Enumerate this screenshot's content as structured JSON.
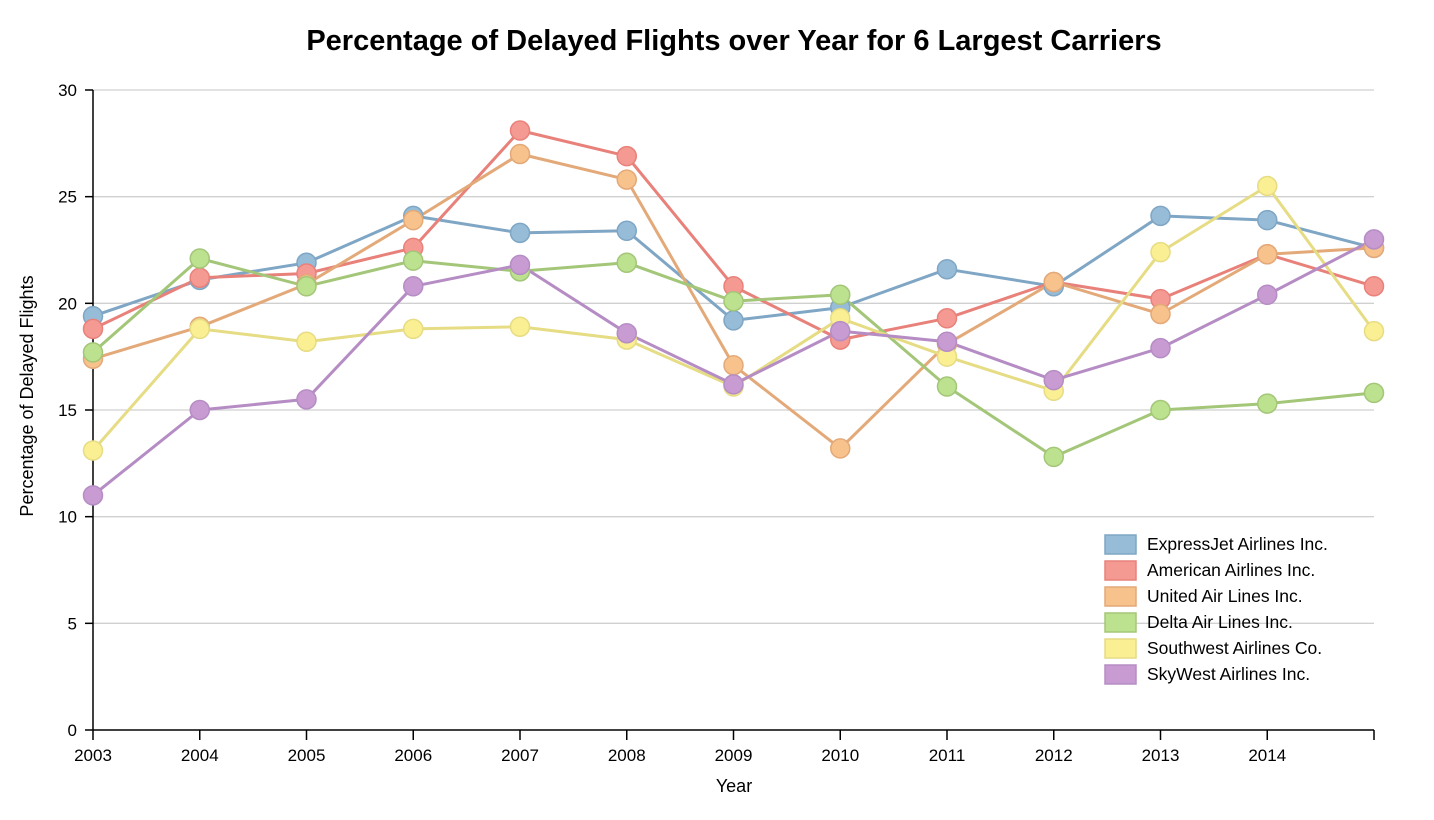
{
  "chart_data": {
    "type": "line",
    "title": "Percentage of Delayed Flights over Year for 6 Largest Carriers",
    "xlabel": "Year",
    "ylabel": "Percentage of Delayed Flights",
    "x": [
      2003,
      2004,
      2005,
      2006,
      2007,
      2008,
      2009,
      2010,
      2011,
      2012,
      2013,
      2014,
      2015
    ],
    "x_tick_labels": [
      "2003",
      "2004",
      "2005",
      "2006",
      "2007",
      "2008",
      "2009",
      "2010",
      "2011",
      "2012",
      "2013",
      "2014",
      ""
    ],
    "y_ticks": [
      0,
      5,
      10,
      15,
      20,
      25,
      30
    ],
    "ylim": [
      0,
      30
    ],
    "xlim": [
      2003,
      2015
    ],
    "grid": true,
    "legend_position": "bottom-right",
    "series": [
      {
        "name": "ExpressJet Airlines Inc.",
        "color": "#7fa6c4",
        "marker": "#96bcd8",
        "values": [
          19.4,
          21.1,
          21.9,
          24.1,
          23.3,
          23.4,
          19.2,
          19.8,
          21.6,
          20.8,
          24.1,
          23.9,
          22.6
        ]
      },
      {
        "name": "American Airlines Inc.",
        "color": "#e8817a",
        "marker": "#f59a93",
        "values": [
          18.8,
          21.2,
          21.4,
          22.6,
          28.1,
          26.9,
          20.8,
          18.3,
          19.3,
          21.0,
          20.2,
          22.3,
          20.8
        ]
      },
      {
        "name": "United Air Lines Inc.",
        "color": "#e3a978",
        "marker": "#f8c28c",
        "values": [
          17.4,
          18.9,
          20.9,
          23.9,
          27.0,
          25.8,
          17.1,
          13.2,
          18.1,
          21.0,
          19.5,
          22.3,
          22.6
        ]
      },
      {
        "name": "Delta Air Lines Inc.",
        "color": "#a3c678",
        "marker": "#bde28f",
        "values": [
          17.7,
          22.1,
          20.8,
          22.0,
          21.5,
          21.9,
          20.1,
          20.4,
          16.1,
          12.8,
          15.0,
          15.3,
          15.8
        ]
      },
      {
        "name": "Southwest Airlines Co.",
        "color": "#e6dc84",
        "marker": "#fbef93",
        "values": [
          13.1,
          18.8,
          18.2,
          18.8,
          18.9,
          18.3,
          16.1,
          19.3,
          17.5,
          15.9,
          22.4,
          25.5,
          18.7
        ]
      },
      {
        "name": "SkyWest Airlines Inc.",
        "color": "#b58dc4",
        "marker": "#c89bd2",
        "values": [
          11.0,
          15.0,
          15.5,
          20.8,
          21.8,
          18.6,
          16.2,
          18.7,
          18.2,
          16.4,
          17.9,
          20.4,
          23.0
        ]
      }
    ]
  }
}
